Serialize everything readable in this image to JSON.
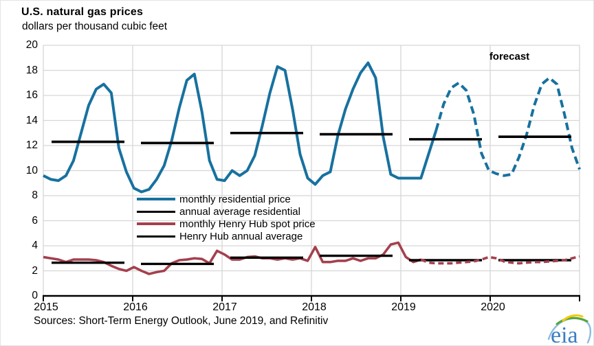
{
  "header": {
    "title": "U.S. natural gas prices",
    "subtitle": "dollars per thousand cubic feet"
  },
  "annotations": {
    "forecast_label": "forecast"
  },
  "legend": {
    "items": [
      {
        "label": "monthly residential price",
        "color": "#17719F",
        "style": "solid"
      },
      {
        "label": "annual average residential",
        "color": "#000000",
        "style": "solid"
      },
      {
        "label": "monthly Henry Hub spot price",
        "color": "#A4404E",
        "style": "solid"
      },
      {
        "label": "Henry Hub annual average",
        "color": "#000000",
        "style": "solid"
      }
    ]
  },
  "footer": {
    "sources": "Sources: Short-Term Energy Outlook, June 2019, and Refinitiv",
    "logo_text": "eia"
  },
  "colors": {
    "residential": "#17719F",
    "henry_hub": "#A4404E",
    "average": "#000000",
    "grid": "#D6D6D6",
    "axis": "#000000",
    "eia_blue": "#3B7CC4",
    "eia_green": "#56A636",
    "eia_yellow": "#F2CB05",
    "eia_lightblue": "#8CBBE0"
  },
  "chart_data": {
    "type": "line",
    "title": "U.S. natural gas prices",
    "ylabel": "dollars per thousand cubic feet",
    "ylim": [
      0,
      20
    ],
    "y_ticks": [
      0,
      2,
      4,
      6,
      8,
      10,
      12,
      14,
      16,
      18,
      20
    ],
    "x_years": [
      "2015",
      "2016",
      "2017",
      "2018",
      "2019",
      "2020"
    ],
    "x_monthly_range": "Jan 2015 - Dec 2020",
    "forecast_start": "2019-05 (dashed = forecast)",
    "grid": true,
    "legend_position": "inside upper-middle-left",
    "series": [
      {
        "name": "monthly residential price",
        "color": "#17719F",
        "solid_through_index": 52,
        "monthly": [
          9.6,
          9.3,
          9.2,
          9.6,
          10.8,
          13.0,
          15.2,
          16.5,
          16.9,
          16.2,
          11.8,
          9.9,
          8.6,
          8.3,
          8.5,
          9.3,
          10.4,
          12.4,
          15.0,
          17.2,
          17.7,
          14.7,
          10.8,
          9.3,
          9.2,
          10.0,
          9.6,
          10.0,
          11.2,
          13.6,
          16.2,
          18.3,
          18.0,
          14.9,
          11.3,
          9.4,
          8.9,
          9.6,
          9.9,
          12.8,
          14.9,
          16.5,
          17.8,
          18.6,
          17.4,
          12.7,
          9.7,
          9.4,
          9.4,
          9.4,
          9.4,
          11.3,
          13.2,
          15.3,
          16.6,
          17.0,
          16.4,
          14.5,
          11.4,
          10.0,
          9.75,
          9.6,
          9.7,
          11.1,
          12.9,
          15.2,
          16.9,
          17.4,
          16.9,
          14.5,
          11.8,
          10.1
        ]
      },
      {
        "name": "annual average residential",
        "color": "#000000",
        "annual_values": [
          12.3,
          12.2,
          13.0,
          12.9,
          12.5,
          12.7
        ]
      },
      {
        "name": "monthly Henry Hub spot price",
        "color": "#A4404E",
        "solid_through_index": 50,
        "monthly": [
          3.1,
          3.0,
          2.9,
          2.7,
          2.9,
          2.9,
          2.9,
          2.85,
          2.7,
          2.4,
          2.15,
          2.0,
          2.3,
          2.0,
          1.75,
          1.9,
          2.0,
          2.6,
          2.85,
          2.9,
          3.0,
          2.95,
          2.6,
          3.6,
          3.3,
          2.9,
          2.9,
          3.1,
          3.15,
          3.0,
          3.0,
          2.9,
          3.0,
          2.9,
          3.0,
          2.8,
          3.9,
          2.7,
          2.7,
          2.8,
          2.8,
          3.0,
          2.8,
          3.0,
          3.0,
          3.3,
          4.1,
          4.25,
          3.1,
          2.7,
          2.9,
          2.65,
          2.6,
          2.6,
          2.6,
          2.65,
          2.7,
          2.75,
          2.9,
          3.1,
          3.0,
          2.75,
          2.65,
          2.6,
          2.65,
          2.7,
          2.7,
          2.75,
          2.8,
          2.85,
          3.0,
          3.15
        ]
      },
      {
        "name": "Henry Hub annual average",
        "color": "#000000",
        "annual_values": [
          2.65,
          2.55,
          3.05,
          3.2,
          2.85,
          2.85
        ]
      }
    ]
  }
}
